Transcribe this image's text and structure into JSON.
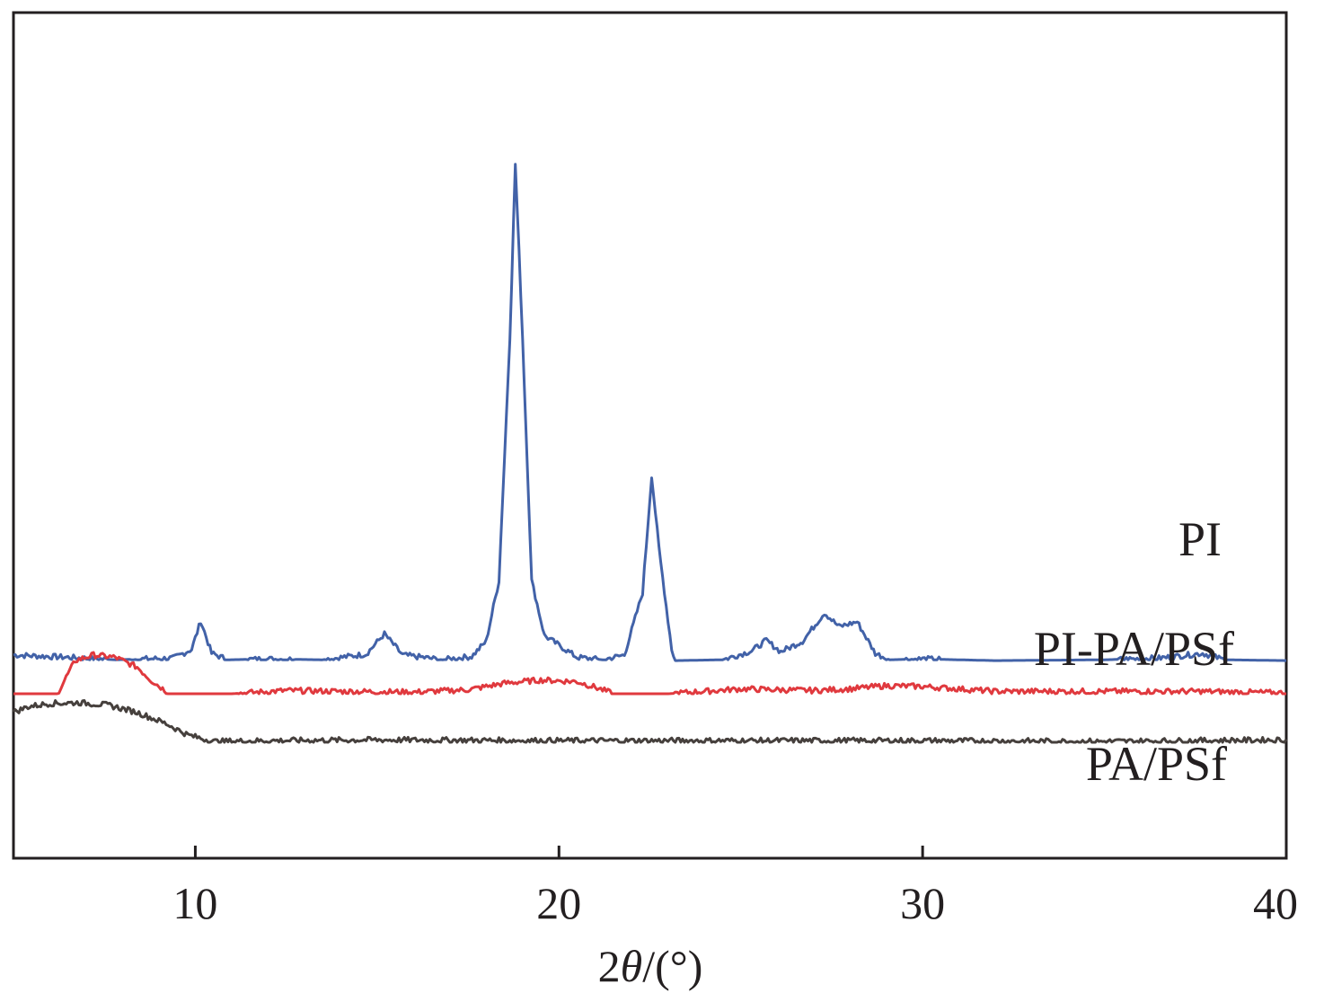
{
  "chart_data": {
    "type": "line",
    "title": "",
    "xlabel": "2θ/(°)",
    "xlabel_parts": [
      "2",
      "θ",
      "/(°)"
    ],
    "ylabel": "",
    "xlim": [
      5,
      40
    ],
    "xticks": [
      10,
      20,
      30,
      40
    ],
    "y_units": "a.u. (stacked, vertically offset)",
    "grid": false,
    "legend": "inline labels at right end of each trace",
    "series": [
      {
        "name": "PI",
        "color": "#4262a8",
        "baseline": 4.2,
        "x": [
          5.0,
          6.5,
          7.8,
          9.4,
          9.9,
          10.15,
          10.45,
          10.9,
          12.0,
          13.5,
          14.7,
          15.2,
          15.7,
          16.8,
          17.6,
          18.0,
          18.35,
          18.65,
          18.8,
          19.0,
          19.25,
          19.6,
          20.5,
          21.2,
          21.8,
          22.3,
          22.55,
          22.75,
          23.1,
          23.2,
          24.5,
          25.3,
          25.7,
          26.1,
          26.7,
          27.3,
          27.7,
          28.2,
          28.7,
          29.1,
          30.0,
          32.0,
          35.0,
          36.5,
          37.7,
          38.3,
          40.0
        ],
        "y": [
          4.8,
          4.5,
          4.2,
          4.4,
          5.5,
          9.0,
          5.0,
          4.2,
          4.3,
          4.2,
          4.9,
          7.4,
          4.8,
          4.2,
          4.6,
          6.5,
          14.0,
          44.0,
          65.5,
          44.0,
          14.0,
          7.2,
          4.5,
          4.2,
          4.8,
          12.5,
          27.0,
          18.0,
          5.5,
          4.1,
          4.2,
          5.3,
          6.6,
          5.2,
          6.5,
          10.0,
          8.3,
          8.9,
          5.0,
          4.2,
          4.3,
          4.1,
          4.2,
          4.4,
          5.0,
          4.2,
          4.1
        ]
      },
      {
        "name": "PI-PA/PSf",
        "color": "#e0393e",
        "baseline": 0.0,
        "x": [
          5.0,
          6.2,
          6.7,
          7.2,
          7.8,
          8.4,
          8.8,
          9.3,
          11.0,
          12.5,
          14.0,
          16.0,
          17.5,
          18.5,
          19.5,
          20.5,
          21.0,
          21.5,
          23.0,
          25.0,
          27.0,
          28.0,
          29.0,
          30.0,
          32.0,
          35.0,
          37.5,
          40.0
        ],
        "y": [
          0.0,
          0.0,
          4.1,
          4.8,
          4.5,
          3.3,
          1.6,
          0.0,
          0.0,
          0.4,
          0.3,
          0.2,
          0.5,
          1.3,
          1.7,
          1.5,
          0.8,
          0.0,
          0.0,
          0.6,
          0.4,
          0.6,
          1.0,
          0.9,
          0.3,
          0.3,
          0.3,
          0.1
        ]
      },
      {
        "name": "PA/PSf",
        "color": "#46403d",
        "baseline": -6.0,
        "x": [
          5.0,
          5.4,
          6.0,
          6.8,
          7.6,
          8.4,
          9.2,
          9.8,
          10.5,
          12.0,
          15.0,
          20.0,
          25.0,
          30.0,
          35.0,
          40.0
        ],
        "y": [
          -2.3,
          -1.6,
          -1.2,
          -1.1,
          -1.4,
          -2.3,
          -3.7,
          -5.1,
          -5.9,
          -5.8,
          -5.7,
          -5.8,
          -5.8,
          -5.8,
          -5.9,
          -5.7
        ]
      }
    ]
  }
}
